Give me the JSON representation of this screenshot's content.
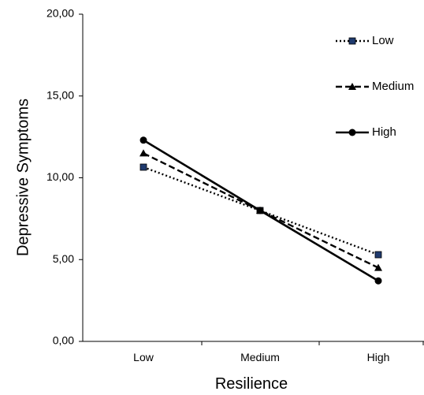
{
  "chart_data": {
    "type": "line",
    "title": "",
    "xlabel": "Resilience",
    "ylabel": "Depressive Symptoms",
    "categories": [
      "Low",
      "Medium",
      "High"
    ],
    "ylim": [
      0,
      20
    ],
    "yticks": [
      "0,00",
      "5,00",
      "10,00",
      "15,00",
      "20,00"
    ],
    "ytick_values": [
      0,
      5,
      10,
      15,
      20
    ],
    "grid": false,
    "legend_position": "top-right",
    "series": [
      {
        "name": "Low",
        "values": [
          10.65,
          8.0,
          5.3
        ],
        "line_style": "dotted",
        "marker": "square",
        "marker_color": "#1f3a6e",
        "color": "#000000"
      },
      {
        "name": "Medium",
        "values": [
          11.5,
          8.0,
          4.5
        ],
        "line_style": "dashed",
        "marker": "triangle",
        "marker_color": "#000000",
        "color": "#000000"
      },
      {
        "name": "High",
        "values": [
          12.3,
          8.0,
          3.7
        ],
        "line_style": "solid",
        "marker": "circle",
        "marker_color": "#000000",
        "color": "#000000"
      }
    ]
  }
}
